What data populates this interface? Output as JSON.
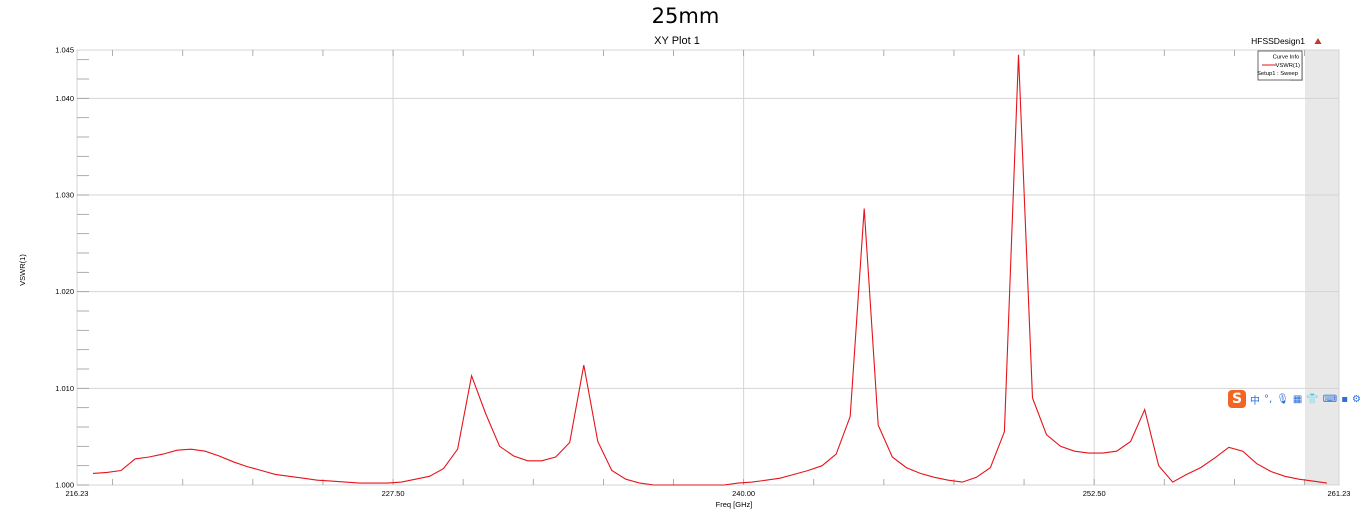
{
  "annotation": "25mm",
  "project_label": "HFSSDesign1",
  "legend": {
    "title": "Curve Info",
    "entry": "VSWR(1)",
    "sub": "Setup1 : Sweep"
  },
  "ime_toolbar": {
    "logo": "S",
    "items": [
      "中",
      "°,",
      "🎙",
      "▦",
      "👕",
      "⌨",
      "▪",
      "⚙"
    ]
  },
  "colors": {
    "curve": "#e5141b",
    "triangle": "#c0392b"
  },
  "chart_data": {
    "type": "line",
    "title": "XY Plot 1",
    "xlabel": "Freq [GHz]",
    "ylabel": "VSWR(1)",
    "xlim": [
      216.23,
      261.23
    ],
    "ylim": [
      1.0,
      1.045
    ],
    "x_ticks": [
      "216.23",
      "227.50",
      "240.00",
      "252.50",
      "261.23"
    ],
    "x_tick_values": [
      216.23,
      227.5,
      240.0,
      252.5,
      261.23
    ],
    "y_ticks": [
      "1.000",
      "1.010",
      "1.020",
      "1.030",
      "1.040",
      "1.045"
    ],
    "y_tick_values": [
      1.0,
      1.01,
      1.02,
      1.03,
      1.04,
      1.045
    ],
    "grid": true,
    "legend_position": "top-right",
    "series": [
      {
        "name": "VSWR(1)",
        "x": [
          216.8,
          217.3,
          217.8,
          218.3,
          218.8,
          219.3,
          219.8,
          220.3,
          220.8,
          221.3,
          221.8,
          222.3,
          222.8,
          223.3,
          223.8,
          224.3,
          224.8,
          225.3,
          225.8,
          226.3,
          226.8,
          227.3,
          227.8,
          228.3,
          228.8,
          229.3,
          229.8,
          230.3,
          230.8,
          231.3,
          231.8,
          232.3,
          232.8,
          233.3,
          233.8,
          234.3,
          234.8,
          235.3,
          235.8,
          236.3,
          236.8,
          237.3,
          237.8,
          238.3,
          238.8,
          239.3,
          239.8,
          240.3,
          240.8,
          241.3,
          241.8,
          242.3,
          242.8,
          243.3,
          243.8,
          244.3,
          244.8,
          245.3,
          245.8,
          246.3,
          246.8,
          247.3,
          247.8,
          248.3,
          248.8,
          249.3,
          249.8,
          250.3,
          250.8,
          251.3,
          251.8,
          252.3,
          252.8,
          253.3,
          253.8,
          254.3,
          254.8,
          255.3,
          255.8,
          256.3,
          256.8,
          257.3,
          257.8,
          258.3,
          258.8,
          259.3,
          259.8,
          260.3,
          260.8
        ],
        "y": [
          1.0012,
          1.0013,
          1.0015,
          1.0027,
          1.0029,
          1.0032,
          1.0036,
          1.0037,
          1.0035,
          1.003,
          1.0024,
          1.0019,
          1.0015,
          1.0011,
          1.0009,
          1.0007,
          1.0005,
          1.0004,
          1.0003,
          1.0002,
          1.0002,
          1.0002,
          1.0003,
          1.0006,
          1.0009,
          1.0017,
          1.0037,
          1.0113,
          1.0074,
          1.004,
          1.003,
          1.0025,
          1.0025,
          1.0029,
          1.0044,
          1.0124,
          1.0045,
          1.0015,
          1.0006,
          1.0002,
          1.0,
          0.9999,
          0.9998,
          0.9998,
          0.9999,
          1.0,
          1.0002,
          1.0003,
          1.0005,
          1.0007,
          1.0011,
          1.0015,
          1.002,
          1.0032,
          1.0071,
          1.0286,
          1.0062,
          1.0029,
          1.0018,
          1.0012,
          1.0008,
          1.0005,
          1.0003,
          1.0008,
          1.0018,
          1.0055,
          1.0445,
          1.009,
          1.0052,
          1.004,
          1.0035,
          1.0033,
          1.0033,
          1.0035,
          1.0045,
          1.0078,
          1.002,
          1.0003,
          1.0011,
          1.0018,
          1.0028,
          1.0039,
          1.0035,
          1.0022,
          1.0014,
          1.0009,
          1.0006,
          1.0004,
          1.0002
        ]
      }
    ]
  }
}
